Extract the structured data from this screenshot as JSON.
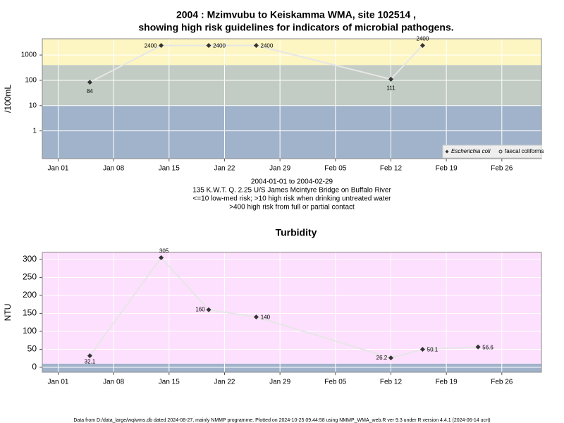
{
  "chart_data": [
    {
      "type": "line",
      "title_lines": [
        "2004 : Mzimvubu to Keiskamma WMA, site 102514 ,",
        "showing high risk guidelines for indicators of microbial pathogens."
      ],
      "y_label": "/100mL",
      "log_y": true,
      "x": [
        "2004-01-05",
        "2004-01-14",
        "2004-01-20",
        "2004-01-26",
        "2004-02-12",
        "2004-02-16"
      ],
      "series": [
        {
          "name": "Escherichia coli",
          "color": "#333333",
          "marker": "diamond",
          "values": [
            84,
            2400,
            2400,
            2400,
            111,
            2400
          ]
        },
        {
          "name": "faecal coliforms",
          "color": "#333333",
          "marker": "circle",
          "values": [
            null,
            null,
            null,
            null,
            null,
            null
          ]
        }
      ],
      "bands": [
        {
          "min": 400,
          "color": "#fdf6c3"
        },
        {
          "min": 10,
          "max": 400,
          "color": "#c2cbc4"
        },
        {
          "max": 10,
          "color": "#a1b3cb"
        }
      ],
      "xlim": [
        "2003-12-30",
        "2004-03-02"
      ],
      "xticks": [
        {
          "value": "2004-01-01",
          "label": "Jan 01"
        },
        {
          "value": "2004-01-08",
          "label": "Jan 08"
        },
        {
          "value": "2004-01-15",
          "label": "Jan 15"
        },
        {
          "value": "2004-01-22",
          "label": "Jan 22"
        },
        {
          "value": "2004-01-29",
          "label": "Jan 29"
        },
        {
          "value": "2004-02-05",
          "label": "Feb 05"
        },
        {
          "value": "2004-02-12",
          "label": "Feb 12"
        },
        {
          "value": "2004-02-19",
          "label": "Feb 19"
        },
        {
          "value": "2004-02-26",
          "label": "Feb 26"
        }
      ],
      "ylim": [
        0.08,
        4400
      ],
      "yticks": [
        1,
        10,
        100,
        1000
      ],
      "grid": true,
      "legend": "bottom-right",
      "notes": [
        "2004-01-01 to 2004-02-29",
        "135 K.W.T. Q. 2.25 U/S James Mcintyre Bridge on Buffalo River",
        "<=10 low-med risk; >10 high risk when drinking untreated water",
        ">400 high risk from full or partial contact"
      ]
    },
    {
      "type": "line",
      "title_lines": [
        "Turbidity"
      ],
      "y_label": "NTU",
      "log_y": false,
      "x": [
        "2004-01-05",
        "2004-01-14",
        "2004-01-20",
        "2004-01-26",
        "2004-02-12",
        "2004-02-16",
        "2004-02-23"
      ],
      "series": [
        {
          "color": "#333333",
          "marker": "diamond",
          "values": [
            32.1,
            305,
            160,
            140,
            26.2,
            50.1,
            56.6
          ]
        }
      ],
      "bands": [
        {
          "min": 10,
          "color": "#fde0fd"
        },
        {
          "max": 10,
          "color": "#a1b3cb"
        }
      ],
      "xlim": [
        "2003-12-30",
        "2004-03-02"
      ],
      "xticks": [
        {
          "value": "2004-01-01",
          "label": "Jan 01"
        },
        {
          "value": "2004-01-08",
          "label": "Jan 08"
        },
        {
          "value": "2004-01-15",
          "label": "Jan 15"
        },
        {
          "value": "2004-01-22",
          "label": "Jan 22"
        },
        {
          "value": "2004-01-29",
          "label": "Jan 29"
        },
        {
          "value": "2004-02-05",
          "label": "Feb 05"
        },
        {
          "value": "2004-02-12",
          "label": "Feb 12"
        },
        {
          "value": "2004-02-19",
          "label": "Feb 19"
        },
        {
          "value": "2004-02-26",
          "label": "Feb 26"
        }
      ],
      "ylim": [
        -13.7,
        319.6
      ],
      "yticks": [
        0,
        50,
        100,
        150,
        200,
        250,
        300
      ],
      "grid": true
    }
  ],
  "footer": "Data from D:/data_large/wq/wms.db dated 2024-08-27, mainly NMMP programme. Plotted on 2024-10-25 09:44:58 using NMMP_WMA_web.R ver 9.3 under R version 4.4.1 (2024-06-14 ucrt)"
}
